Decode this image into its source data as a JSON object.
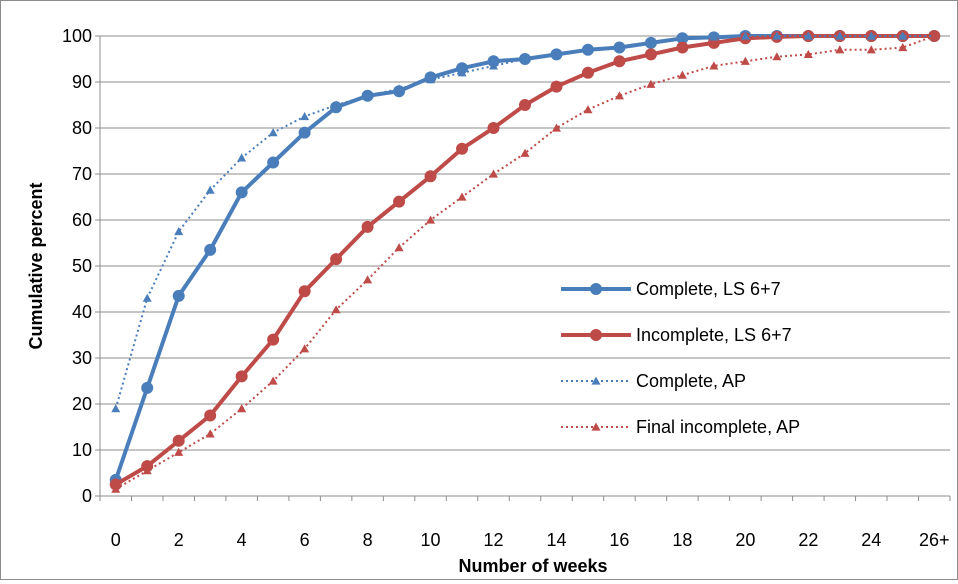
{
  "chart_data": {
    "type": "line",
    "title": "",
    "xlabel": "Number of weeks",
    "ylabel": "Cumulative percent",
    "ylim": [
      0,
      100
    ],
    "y_ticks": [
      "0",
      "10",
      "20",
      "30",
      "40",
      "50",
      "60",
      "70",
      "80",
      "90",
      "100"
    ],
    "x_positions": [
      "0",
      "1",
      "2",
      "3",
      "4",
      "5",
      "6",
      "7",
      "8",
      "9",
      "10",
      "11",
      "12",
      "13",
      "14",
      "15",
      "16",
      "17",
      "18",
      "19",
      "20",
      "21",
      "22",
      "23",
      "24",
      "25",
      "26+"
    ],
    "x_tick_labels": [
      "0",
      "2",
      "4",
      "6",
      "8",
      "10",
      "12",
      "14",
      "16",
      "18",
      "20",
      "22",
      "24",
      "26+"
    ],
    "grid": "horizontal",
    "legend_position": "lower-right",
    "series": [
      {
        "name": "Complete, LS 6+7",
        "color": "#4a7ebb",
        "line_style": "solid",
        "marker": "circle",
        "values": [
          3.5,
          23.5,
          43.5,
          53.5,
          66,
          72.5,
          79,
          84.5,
          87,
          88,
          91,
          93,
          94.5,
          95,
          96,
          97,
          97.5,
          98.5,
          99.5,
          99.7,
          100,
          100,
          100,
          100,
          100,
          100,
          100
        ]
      },
      {
        "name": "Incomplete, LS 6+7",
        "color": "#be4b48",
        "line_style": "solid",
        "marker": "circle",
        "values": [
          2.5,
          6.5,
          12,
          17.5,
          26,
          34,
          44.5,
          51.5,
          58.5,
          64,
          69.5,
          75.5,
          80,
          85,
          89,
          92,
          94.5,
          96,
          97.5,
          98.5,
          99.5,
          99.8,
          100,
          100,
          100,
          100,
          100
        ]
      },
      {
        "name": "Complete, AP",
        "color": "#4a7ebb",
        "line_style": "dotted",
        "marker": "triangle",
        "values": [
          19,
          43,
          57.5,
          66.5,
          73.5,
          79,
          82.5,
          85,
          87,
          88.5,
          90.5,
          92,
          93.5,
          95,
          96,
          97,
          97.5,
          98.5,
          99.5,
          99.8,
          100,
          100,
          100,
          100,
          100,
          100,
          100
        ]
      },
      {
        "name": "Final incomplete, AP",
        "color": "#be4b48",
        "line_style": "dotted",
        "marker": "triangle",
        "values": [
          1.5,
          5.5,
          9.5,
          13.5,
          19,
          25,
          32,
          40.5,
          47,
          54,
          60,
          65,
          70,
          74.5,
          80,
          84,
          87,
          89.5,
          91.5,
          93.5,
          94.5,
          95.5,
          96,
          97,
          97,
          97.5,
          100
        ]
      }
    ]
  }
}
